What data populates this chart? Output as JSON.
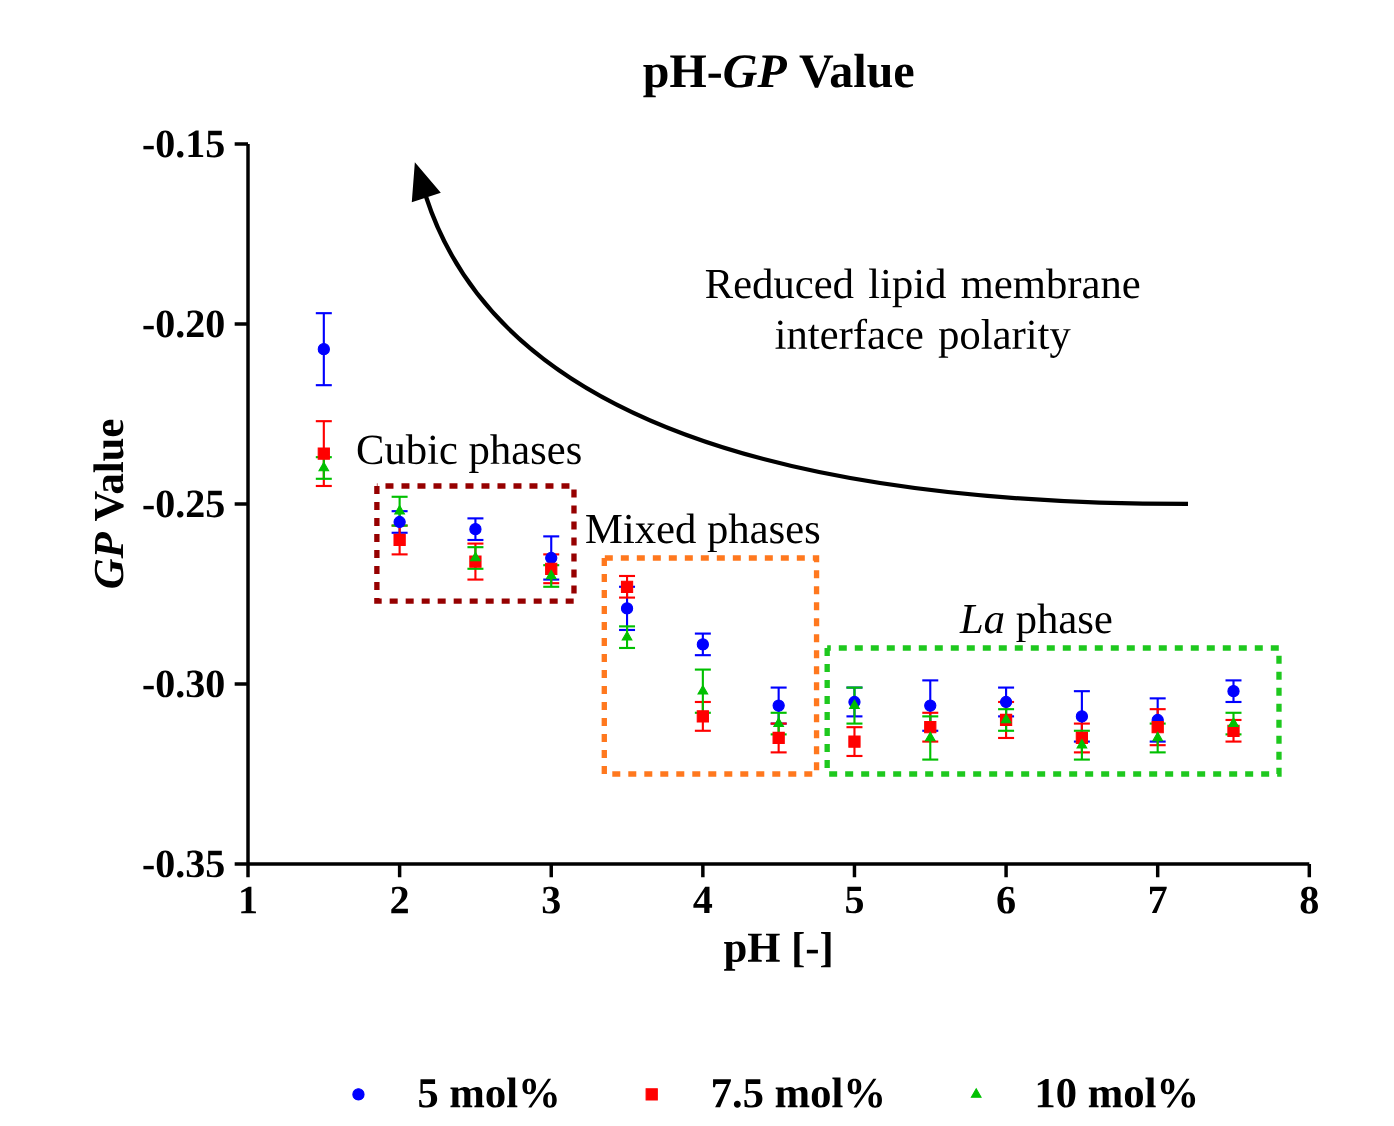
{
  "chart_data": {
    "type": "scatter",
    "title": "pH-*GP* Value",
    "xlabel": "pH [-]",
    "ylabel": "*GP* Value",
    "xlim": [
      1,
      8
    ],
    "xticks": [
      1,
      2,
      3,
      4,
      5,
      6,
      7,
      8
    ],
    "ylim": [
      -0.35,
      -0.15
    ],
    "yticks": [
      -0.35,
      {
        "value": -0.3,
        "label": "-0.30"
      },
      -0.25,
      {
        "value": -0.2,
        "label": "-0.20"
      },
      -0.15
    ],
    "x": [
      1.5,
      2,
      2.5,
      3,
      3.5,
      4,
      4.5,
      5,
      5.5,
      6,
      6.5,
      7,
      7.5
    ],
    "series": [
      {
        "name": "5 mol%",
        "color": "#0000ff",
        "marker": "circle",
        "values": [
          -0.207,
          -0.255,
          -0.257,
          -0.265,
          -0.279,
          -0.289,
          -0.306,
          -0.305,
          -0.306,
          -0.305,
          -0.309,
          -0.31,
          -0.302
        ],
        "errors": [
          0.01,
          0.003,
          0.003,
          0.006,
          0.006,
          0.003,
          0.005,
          0.004,
          0.007,
          0.004,
          0.007,
          0.006,
          0.003
        ]
      },
      {
        "name": "7.5 mol%",
        "color": "#ff0000",
        "marker": "square",
        "values": [
          -0.236,
          -0.26,
          -0.266,
          -0.268,
          -0.273,
          -0.309,
          -0.315,
          -0.316,
          -0.312,
          -0.31,
          -0.315,
          -0.312,
          -0.313
        ],
        "errors": [
          0.009,
          0.004,
          0.005,
          0.004,
          0.003,
          0.004,
          0.004,
          0.004,
          0.004,
          0.005,
          0.004,
          0.005,
          0.003
        ]
      },
      {
        "name": "10 mol%",
        "color": "#00c000",
        "marker": "triangle",
        "values": [
          -0.24,
          -0.252,
          -0.265,
          -0.27,
          -0.287,
          -0.302,
          -0.311,
          -0.306,
          -0.315,
          -0.31,
          -0.317,
          -0.315,
          -0.311
        ],
        "errors": [
          0.003,
          0.004,
          0.003,
          0.003,
          0.003,
          0.006,
          0.003,
          0.005,
          0.006,
          0.003,
          0.004,
          0.004,
          0.003
        ]
      }
    ],
    "annotations": [
      "Reduced lipid membrane interface polarity",
      "Cubic phases",
      "Mixed phases",
      "*La* phase"
    ],
    "legend": "bottom",
    "grid": false
  }
}
